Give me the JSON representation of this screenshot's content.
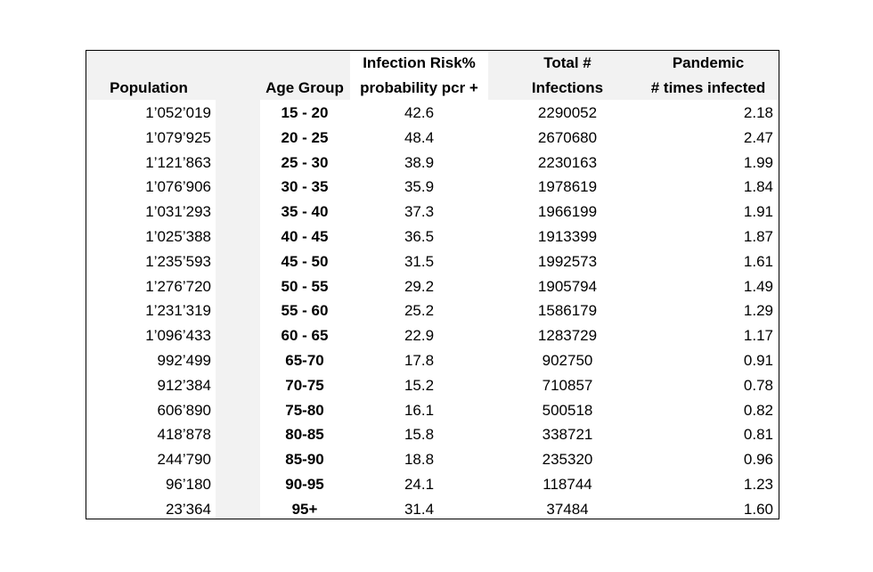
{
  "table": {
    "headers": {
      "population": [
        "",
        "Population"
      ],
      "age_group": [
        "",
        "Age Group"
      ],
      "infection_risk": [
        "Infection Risk%",
        "probability pcr +"
      ],
      "total_infections": [
        "Total #",
        "Infections"
      ],
      "pandemic": [
        "Pandemic",
        "# times infected"
      ]
    },
    "rows": [
      {
        "population": "1’052’019",
        "age_group": "15 - 20",
        "risk": "42.6",
        "total": "2290052",
        "times": "2.18"
      },
      {
        "population": "1’079’925",
        "age_group": "20 - 25",
        "risk": "48.4",
        "total": "2670680",
        "times": "2.47"
      },
      {
        "population": "1’121’863",
        "age_group": "25 - 30",
        "risk": "38.9",
        "total": "2230163",
        "times": "1.99"
      },
      {
        "population": "1’076’906",
        "age_group": "30 - 35",
        "risk": "35.9",
        "total": "1978619",
        "times": "1.84"
      },
      {
        "population": "1’031’293",
        "age_group": "35 - 40",
        "risk": "37.3",
        "total": "1966199",
        "times": "1.91"
      },
      {
        "population": "1’025’388",
        "age_group": "40 - 45",
        "risk": "36.5",
        "total": "1913399",
        "times": "1.87"
      },
      {
        "population": "1’235’593",
        "age_group": "45 - 50",
        "risk": "31.5",
        "total": "1992573",
        "times": "1.61"
      },
      {
        "population": "1’276’720",
        "age_group": "50 - 55",
        "risk": "29.2",
        "total": "1905794",
        "times": "1.49"
      },
      {
        "population": "1’231’319",
        "age_group": "55 - 60",
        "risk": "25.2",
        "total": "1586179",
        "times": "1.29"
      },
      {
        "population": "1’096’433",
        "age_group": "60 - 65",
        "risk": "22.9",
        "total": "1283729",
        "times": "1.17"
      },
      {
        "population": "992’499",
        "age_group": "65-70",
        "risk": "17.8",
        "total": "902750",
        "times": "0.91"
      },
      {
        "population": "912’384",
        "age_group": "70-75",
        "risk": "15.2",
        "total": "710857",
        "times": "0.78"
      },
      {
        "population": "606’890",
        "age_group": "75-80",
        "risk": "16.1",
        "total": "500518",
        "times": "0.82"
      },
      {
        "population": "418’878",
        "age_group": "80-85",
        "risk": "15.8",
        "total": "338721",
        "times": "0.81"
      },
      {
        "population": "244’790",
        "age_group": "85-90",
        "risk": "18.8",
        "total": "235320",
        "times": "0.96"
      },
      {
        "population": "96’180",
        "age_group": "90-95",
        "risk": "24.1",
        "total": "118744",
        "times": "1.23"
      },
      {
        "population": "23’364",
        "age_group": "95+",
        "risk": "31.4",
        "total": "37484",
        "times": "1.60"
      }
    ]
  }
}
